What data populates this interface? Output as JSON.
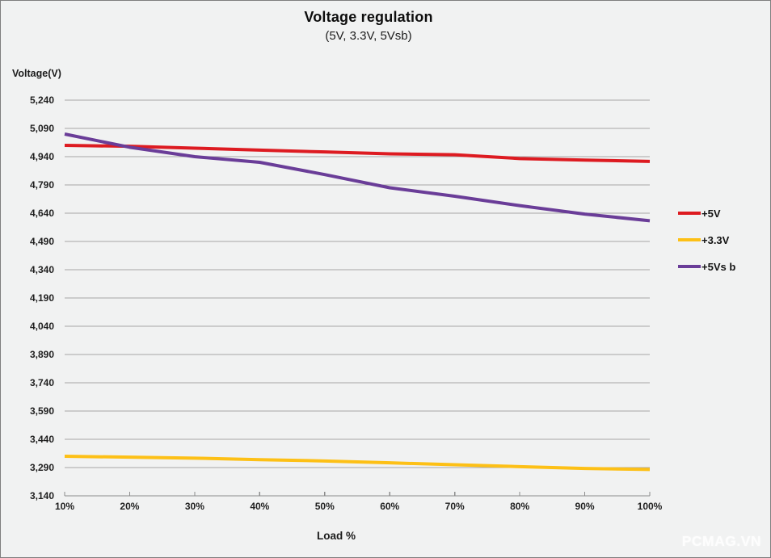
{
  "header": {
    "title": "Voltage regulation",
    "subtitle": "(5V, 3.3V, 5Vsb)"
  },
  "chart_data": {
    "type": "line",
    "title": "Voltage regulation",
    "subtitle": "(5V, 3.3V, 5Vsb)",
    "xlabel": "Load %",
    "ylabel": "Voltage(V)",
    "categories": [
      "10%",
      "20%",
      "30%",
      "40%",
      "50%",
      "60%",
      "70%",
      "80%",
      "90%",
      "100%"
    ],
    "series": [
      {
        "name": "+5V",
        "color": "#dd1b21",
        "values": [
          5000,
          4995,
          4985,
          4975,
          4965,
          4955,
          4950,
          4930,
          4922,
          4915
        ]
      },
      {
        "name": "+3.3V",
        "color": "#fdc016",
        "values": [
          3350,
          3345,
          3340,
          3332,
          3325,
          3315,
          3305,
          3295,
          3285,
          3280
        ]
      },
      {
        "name": "+5Vs b",
        "color": "#6a3d98",
        "values": [
          5060,
          4990,
          4940,
          4910,
          4845,
          4775,
          4730,
          4680,
          4635,
          4600
        ]
      }
    ],
    "ylim": [
      3140,
      5240
    ],
    "y_tick_step": 150,
    "y_tick_labels": [
      "5,240",
      "5,090",
      "4,940",
      "4,790",
      "4,640",
      "4,490",
      "4,340",
      "4,190",
      "4,040",
      "3,890",
      "3,740",
      "3,590",
      "3,440",
      "3,290",
      "3,140"
    ],
    "grid": true,
    "legend_position": "right"
  },
  "colors": {
    "background": "#f1f2f2",
    "gridline": "#a6a6a6",
    "axis": "#8c8c8c",
    "border": "#7e7e7e"
  },
  "watermark": {
    "text": "PCMAG.VN"
  }
}
